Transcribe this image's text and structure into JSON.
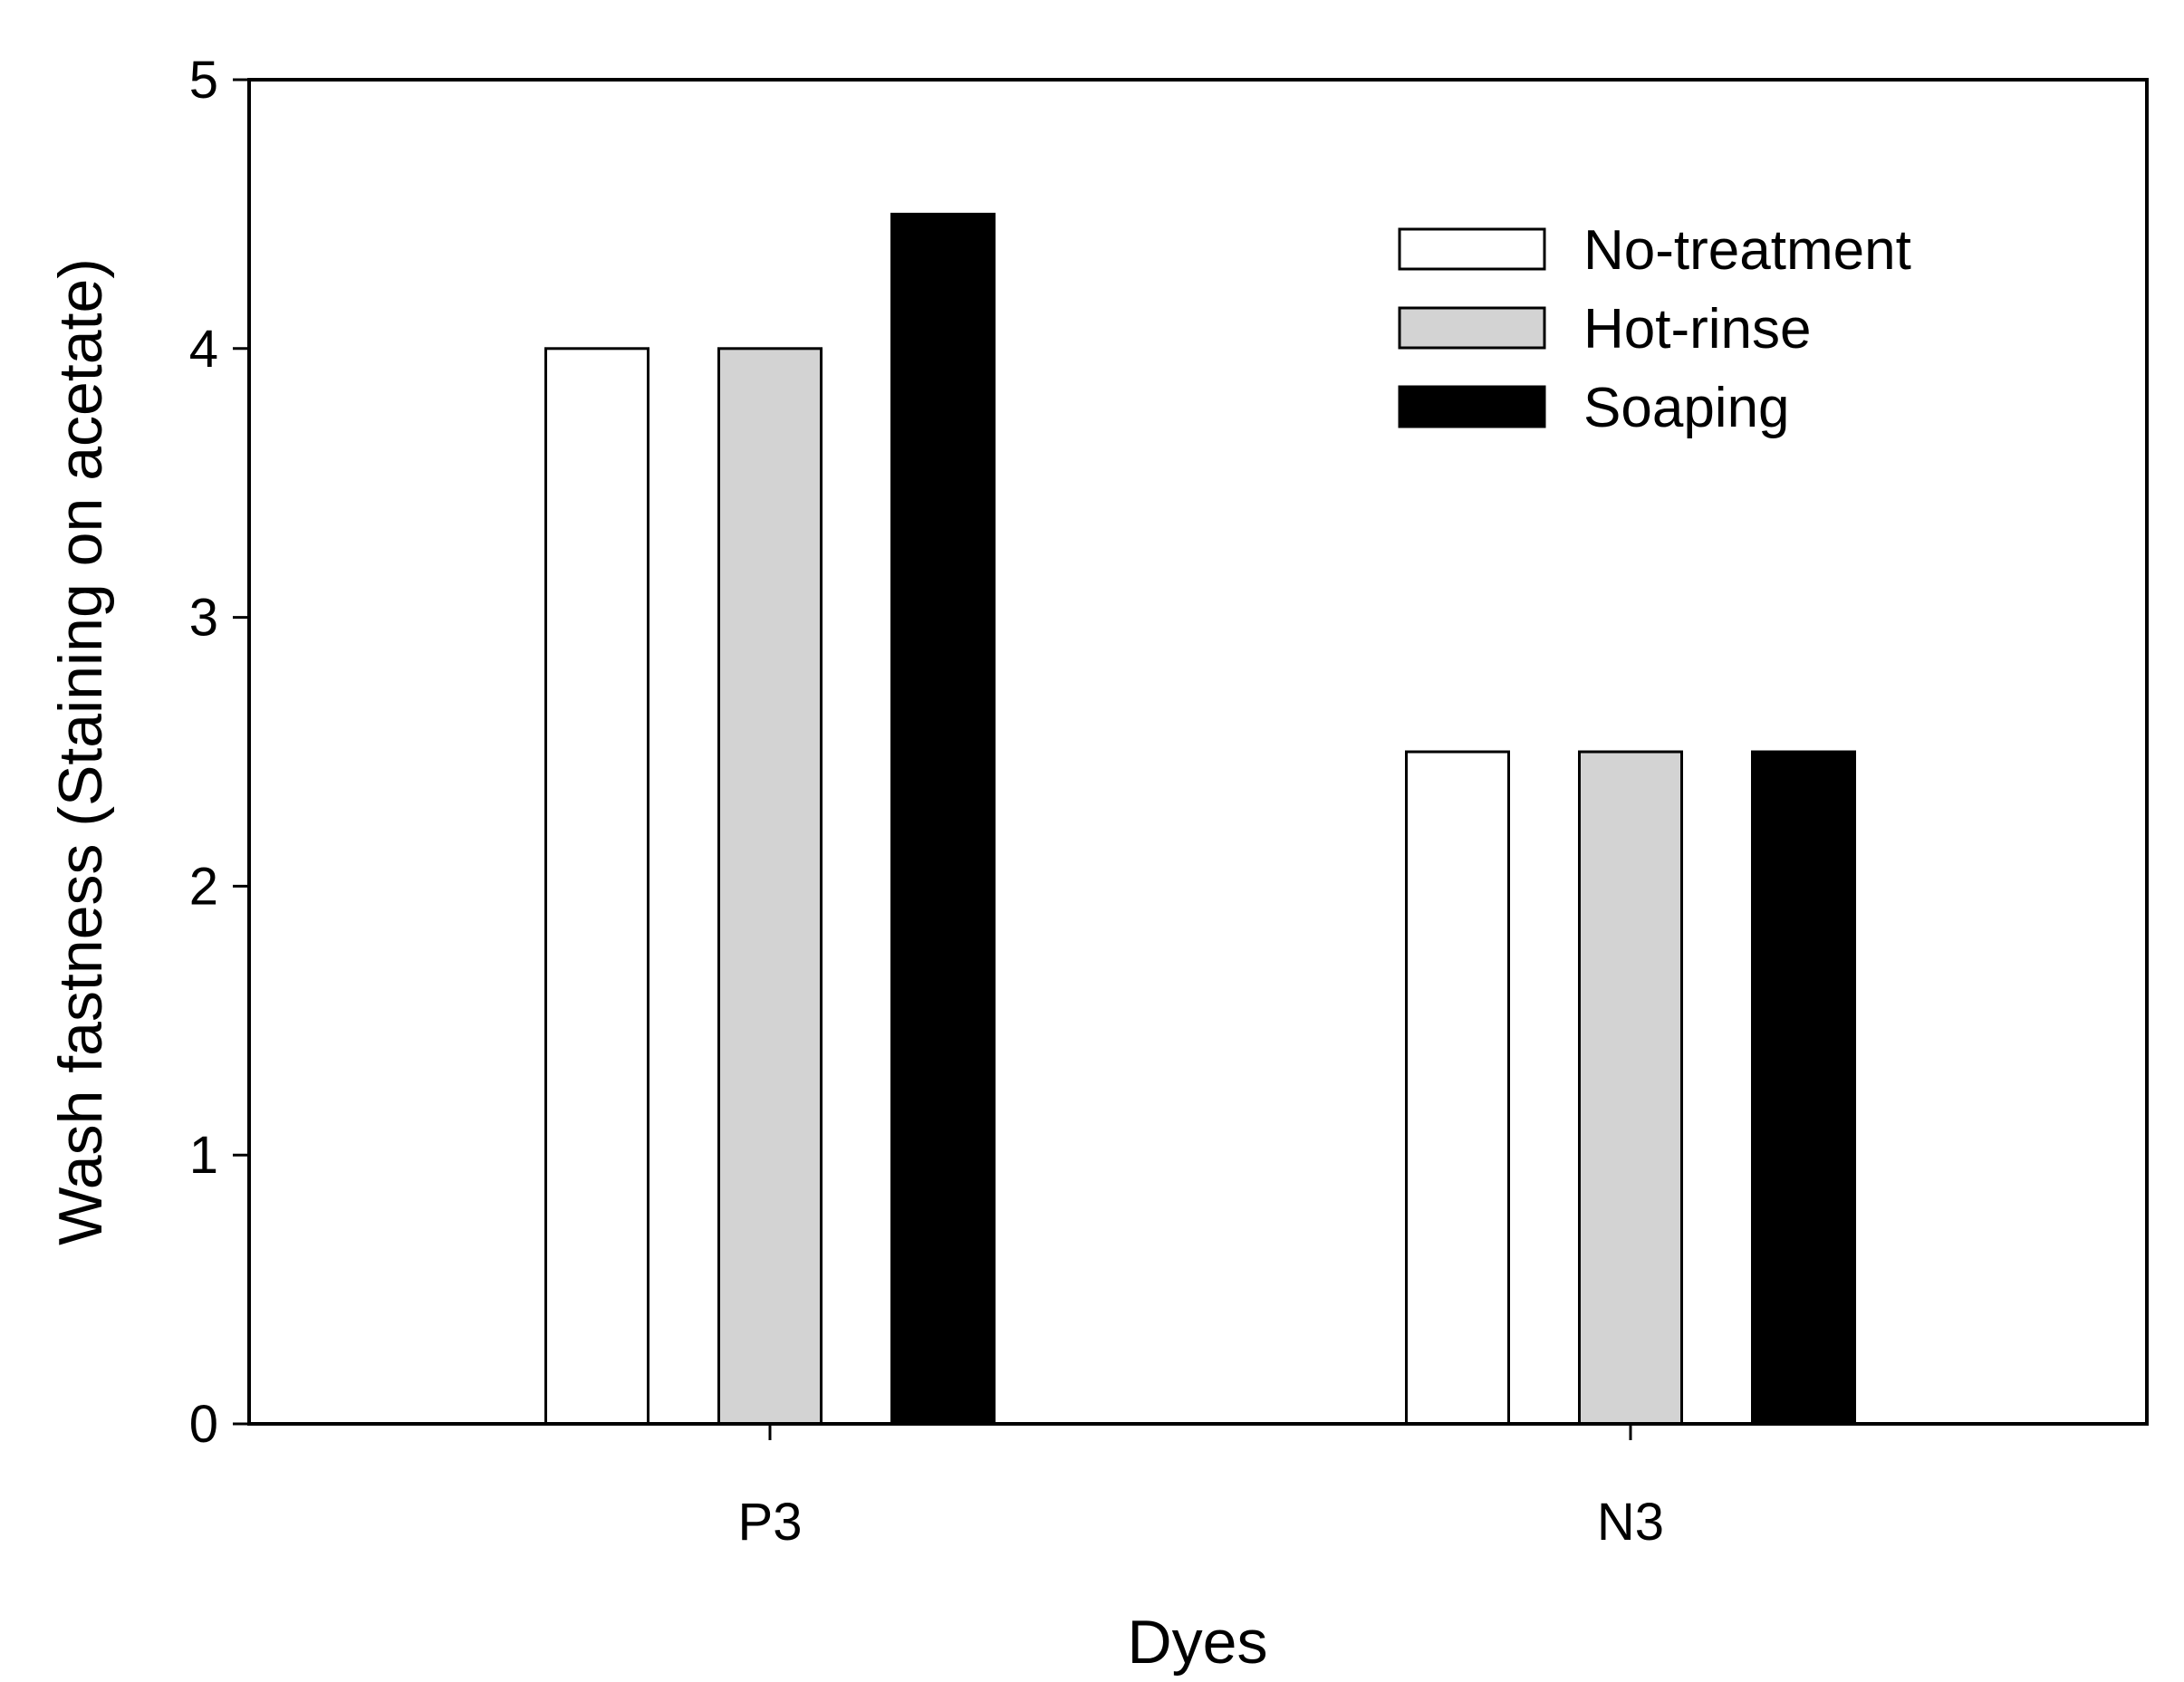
{
  "chart_data": {
    "type": "bar",
    "title": "",
    "xlabel": "Dyes",
    "ylabel": "Wash fastness (Staining on acetate)",
    "categories": [
      "P3",
      "N3"
    ],
    "series": [
      {
        "name": "No-treatment",
        "color": "#ffffff",
        "values": [
          4,
          2.5
        ]
      },
      {
        "name": "Hot-rinse",
        "color": "#d3d3d3",
        "values": [
          4,
          2.5
        ]
      },
      {
        "name": "Soaping",
        "color": "#000000",
        "values": [
          4.5,
          2.5
        ]
      }
    ],
    "ylim": [
      0,
      5
    ],
    "yticks": [
      "0",
      "1",
      "2",
      "3",
      "4",
      "5"
    ],
    "grid": false,
    "legend_position": "top-right"
  }
}
